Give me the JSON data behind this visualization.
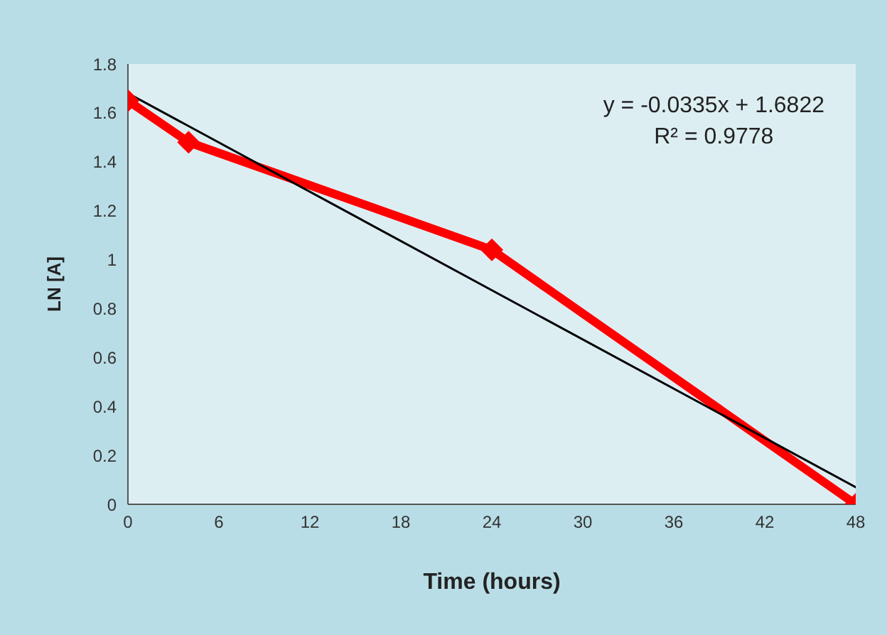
{
  "chart_data": {
    "type": "line",
    "xlabel": "Time (hours)",
    "ylabel": "LN [A]",
    "xlim": [
      0,
      48
    ],
    "xticks": [
      0,
      6,
      12,
      18,
      24,
      30,
      36,
      42,
      48
    ],
    "ylim": [
      0,
      1.8
    ],
    "yticks": [
      0,
      0.2,
      0.4,
      0.6,
      0.8,
      1,
      1.2,
      1.4,
      1.6,
      1.8
    ],
    "series": [
      {
        "color": "#ff0000",
        "x": [
          0,
          4,
          24,
          48
        ],
        "values": [
          1.65,
          1.48,
          1.04,
          0
        ],
        "marker": "diamond"
      },
      {
        "color": "#000000",
        "x": [
          0,
          48
        ],
        "values": [
          1.68,
          0.07
        ],
        "marker": "none"
      }
    ],
    "annotations": [
      "y = -0.0335x + 1.6822",
      "R² = 0.9778"
    ]
  }
}
